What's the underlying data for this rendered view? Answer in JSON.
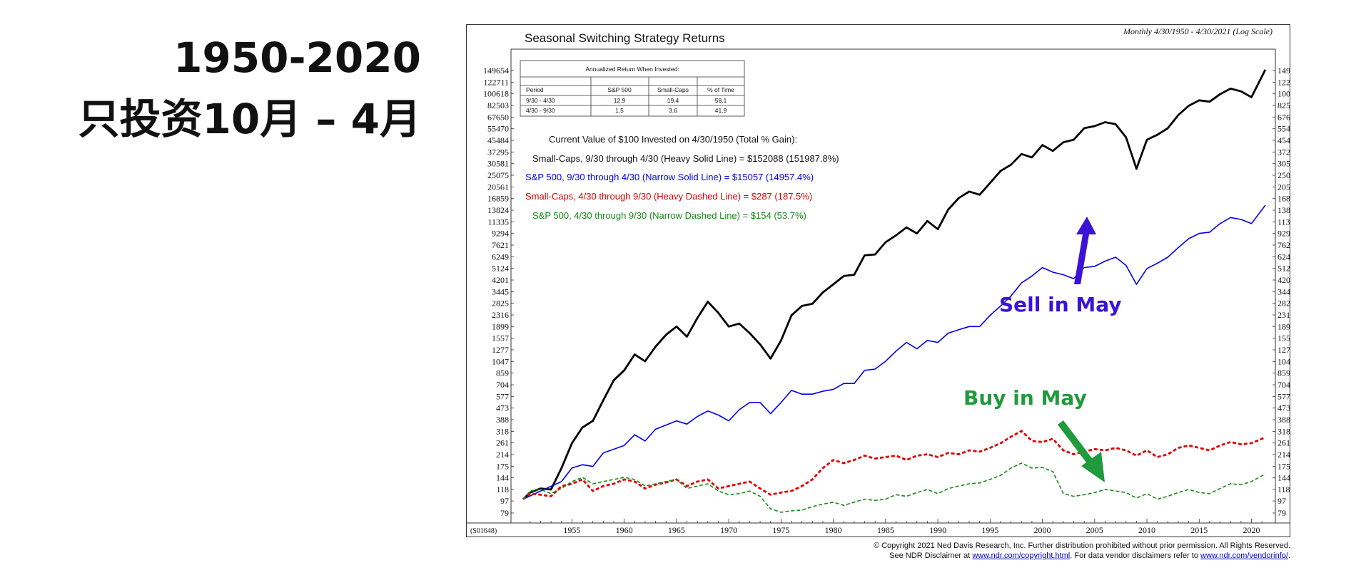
{
  "side_title": {
    "line1": "1950-2020",
    "line2": "只投资10月 – 4月"
  },
  "chart_data": {
    "type": "line",
    "title": "Seasonal Switching Strategy Returns",
    "subtitle": "Monthly 4/30/1950 - 4/30/2021 (Log Scale)",
    "code": "(S01648)",
    "y_scale": "log",
    "ylim": [
      79,
      149654
    ],
    "xlim": [
      1950.33,
      2021.33
    ],
    "y_ticks": [
      149654,
      122711,
      100618,
      82503,
      67650,
      55470,
      45484,
      37295,
      30581,
      25075,
      20561,
      16859,
      13824,
      11335,
      9294,
      7621,
      6249,
      5124,
      4201,
      3445,
      2825,
      2316,
      1899,
      1557,
      1277,
      1047,
      859,
      704,
      577,
      473,
      388,
      318,
      261,
      214,
      175,
      144,
      118,
      97,
      79
    ],
    "x_ticks": [
      1955,
      1960,
      1965,
      1970,
      1975,
      1980,
      1985,
      1990,
      1995,
      2000,
      2005,
      2010,
      2015,
      2020
    ],
    "table": {
      "title": "Annualized Return When Invested:",
      "headers": [
        "Period",
        "S&P 500",
        "Small-Caps",
        "% of Time"
      ],
      "rows": [
        [
          "9/30 - 4/30",
          "12.9",
          "19.4",
          "58.1"
        ],
        [
          "4/30 - 9/30",
          "1.5",
          "3.6",
          "41.9"
        ]
      ]
    },
    "legend_heading": "Current Value of $100 Invested on 4/30/1950 (Total % Gain):",
    "series": [
      {
        "name": "Small-Caps, 9/30 through 4/30 (Heavy Solid Line) = $152088 (151987.8%)",
        "color": "#000000",
        "style": "heavy-solid",
        "points": [
          [
            1950.33,
            100
          ],
          [
            1951,
            112
          ],
          [
            1952,
            120
          ],
          [
            1953,
            118
          ],
          [
            1954,
            170
          ],
          [
            1955,
            260
          ],
          [
            1956,
            340
          ],
          [
            1957,
            380
          ],
          [
            1958,
            540
          ],
          [
            1959,
            760
          ],
          [
            1960,
            900
          ],
          [
            1961,
            1180
          ],
          [
            1962,
            1050
          ],
          [
            1963,
            1350
          ],
          [
            1964,
            1650
          ],
          [
            1965,
            1900
          ],
          [
            1966,
            1600
          ],
          [
            1967,
            2200
          ],
          [
            1968,
            2900
          ],
          [
            1969,
            2400
          ],
          [
            1970,
            1900
          ],
          [
            1971,
            2000
          ],
          [
            1972,
            1700
          ],
          [
            1973,
            1400
          ],
          [
            1974,
            1100
          ],
          [
            1975,
            1500
          ],
          [
            1976,
            2300
          ],
          [
            1977,
            2700
          ],
          [
            1978,
            2800
          ],
          [
            1979,
            3400
          ],
          [
            1980,
            3900
          ],
          [
            1981,
            4500
          ],
          [
            1982,
            4600
          ],
          [
            1983,
            6400
          ],
          [
            1984,
            6500
          ],
          [
            1985,
            8000
          ],
          [
            1986,
            9000
          ],
          [
            1987,
            10300
          ],
          [
            1988,
            9300
          ],
          [
            1989,
            11500
          ],
          [
            1990,
            10000
          ],
          [
            1991,
            14000
          ],
          [
            1992,
            17000
          ],
          [
            1993,
            19000
          ],
          [
            1994,
            18000
          ],
          [
            1995,
            22000
          ],
          [
            1996,
            27000
          ],
          [
            1997,
            30000
          ],
          [
            1998,
            36000
          ],
          [
            1999,
            34000
          ],
          [
            2000,
            42000
          ],
          [
            2001,
            38000
          ],
          [
            2002,
            44000
          ],
          [
            2003,
            46000
          ],
          [
            2004,
            56000
          ],
          [
            2005,
            58000
          ],
          [
            2006,
            62000
          ],
          [
            2007,
            60000
          ],
          [
            2008,
            48000
          ],
          [
            2009,
            28000
          ],
          [
            2010,
            46000
          ],
          [
            2011,
            50000
          ],
          [
            2012,
            56000
          ],
          [
            2013,
            70000
          ],
          [
            2014,
            82000
          ],
          [
            2015,
            90000
          ],
          [
            2016,
            88000
          ],
          [
            2017,
            100000
          ],
          [
            2018,
            110000
          ],
          [
            2019,
            105000
          ],
          [
            2020,
            95000
          ],
          [
            2021.33,
            152088
          ]
        ]
      },
      {
        "name": "S&P 500, 9/30 through 4/30 (Narrow Solid Line) = $15057 (14957.4%)",
        "color": "#0000ee",
        "style": "narrow-solid",
        "points": [
          [
            1950.33,
            100
          ],
          [
            1952,
            115
          ],
          [
            1954,
            135
          ],
          [
            1955,
            170
          ],
          [
            1956,
            180
          ],
          [
            1957,
            175
          ],
          [
            1958,
            220
          ],
          [
            1960,
            250
          ],
          [
            1961,
            300
          ],
          [
            1962,
            270
          ],
          [
            1963,
            330
          ],
          [
            1965,
            380
          ],
          [
            1966,
            360
          ],
          [
            1967,
            410
          ],
          [
            1968,
            450
          ],
          [
            1969,
            420
          ],
          [
            1970,
            380
          ],
          [
            1971,
            460
          ],
          [
            1972,
            520
          ],
          [
            1973,
            520
          ],
          [
            1974,
            430
          ],
          [
            1975,
            520
          ],
          [
            1976,
            640
          ],
          [
            1977,
            600
          ],
          [
            1978,
            600
          ],
          [
            1979,
            630
          ],
          [
            1980,
            650
          ],
          [
            1981,
            720
          ],
          [
            1982,
            720
          ],
          [
            1983,
            900
          ],
          [
            1984,
            920
          ],
          [
            1985,
            1050
          ],
          [
            1986,
            1250
          ],
          [
            1987,
            1450
          ],
          [
            1988,
            1300
          ],
          [
            1989,
            1500
          ],
          [
            1990,
            1450
          ],
          [
            1991,
            1700
          ],
          [
            1992,
            1800
          ],
          [
            1993,
            1900
          ],
          [
            1994,
            1900
          ],
          [
            1995,
            2300
          ],
          [
            1996,
            2700
          ],
          [
            1997,
            3200
          ],
          [
            1998,
            4000
          ],
          [
            1999,
            4500
          ],
          [
            2000,
            5200
          ],
          [
            2001,
            4800
          ],
          [
            2002,
            4600
          ],
          [
            2003,
            4300
          ],
          [
            2004,
            5200
          ],
          [
            2005,
            5300
          ],
          [
            2006,
            5800
          ],
          [
            2007,
            6200
          ],
          [
            2008,
            5400
          ],
          [
            2009,
            3900
          ],
          [
            2010,
            5100
          ],
          [
            2011,
            5600
          ],
          [
            2012,
            6200
          ],
          [
            2013,
            7300
          ],
          [
            2014,
            8500
          ],
          [
            2015,
            9300
          ],
          [
            2016,
            9500
          ],
          [
            2017,
            11000
          ],
          [
            2018,
            12200
          ],
          [
            2019,
            11800
          ],
          [
            2020,
            11000
          ],
          [
            2021.33,
            15057
          ]
        ]
      },
      {
        "name": "Small-Caps, 4/30 through 9/30 (Heavy Dashed Line) = $287 (187.5%)",
        "color": "#e00000",
        "style": "heavy-dashed",
        "points": [
          [
            1950.33,
            100
          ],
          [
            1951,
            110
          ],
          [
            1952,
            108
          ],
          [
            1953,
            105
          ],
          [
            1954,
            125
          ],
          [
            1955,
            130
          ],
          [
            1956,
            140
          ],
          [
            1957,
            115
          ],
          [
            1958,
            125
          ],
          [
            1959,
            130
          ],
          [
            1960,
            140
          ],
          [
            1961,
            135
          ],
          [
            1962,
            120
          ],
          [
            1963,
            128
          ],
          [
            1964,
            133
          ],
          [
            1965,
            140
          ],
          [
            1966,
            125
          ],
          [
            1967,
            135
          ],
          [
            1968,
            140
          ],
          [
            1969,
            120
          ],
          [
            1970,
            125
          ],
          [
            1971,
            130
          ],
          [
            1972,
            135
          ],
          [
            1973,
            120
          ],
          [
            1974,
            108
          ],
          [
            1975,
            112
          ],
          [
            1976,
            115
          ],
          [
            1977,
            125
          ],
          [
            1978,
            140
          ],
          [
            1979,
            170
          ],
          [
            1980,
            195
          ],
          [
            1981,
            185
          ],
          [
            1982,
            195
          ],
          [
            1983,
            210
          ],
          [
            1984,
            200
          ],
          [
            1985,
            205
          ],
          [
            1986,
            210
          ],
          [
            1987,
            195
          ],
          [
            1988,
            210
          ],
          [
            1989,
            215
          ],
          [
            1990,
            205
          ],
          [
            1991,
            220
          ],
          [
            1992,
            215
          ],
          [
            1993,
            230
          ],
          [
            1994,
            225
          ],
          [
            1995,
            240
          ],
          [
            1996,
            260
          ],
          [
            1997,
            290
          ],
          [
            1998,
            320
          ],
          [
            1999,
            270
          ],
          [
            2000,
            265
          ],
          [
            2001,
            280
          ],
          [
            2002,
            230
          ],
          [
            2003,
            215
          ],
          [
            2004,
            225
          ],
          [
            2005,
            235
          ],
          [
            2006,
            230
          ],
          [
            2007,
            240
          ],
          [
            2008,
            230
          ],
          [
            2009,
            210
          ],
          [
            2010,
            230
          ],
          [
            2011,
            205
          ],
          [
            2012,
            215
          ],
          [
            2013,
            240
          ],
          [
            2014,
            250
          ],
          [
            2015,
            240
          ],
          [
            2016,
            230
          ],
          [
            2017,
            250
          ],
          [
            2018,
            265
          ],
          [
            2019,
            255
          ],
          [
            2020,
            260
          ],
          [
            2021.33,
            287
          ]
        ]
      },
      {
        "name": "S&P 500, 4/30 through 9/30 (Narrow Dashed Line) = $154 (53.7%)",
        "color": "#178a17",
        "style": "narrow-dashed",
        "points": [
          [
            1950.33,
            100
          ],
          [
            1951,
            115
          ],
          [
            1952,
            118
          ],
          [
            1953,
            110
          ],
          [
            1954,
            120
          ],
          [
            1955,
            135
          ],
          [
            1956,
            145
          ],
          [
            1957,
            130
          ],
          [
            1958,
            135
          ],
          [
            1959,
            140
          ],
          [
            1960,
            145
          ],
          [
            1961,
            140
          ],
          [
            1962,
            125
          ],
          [
            1963,
            130
          ],
          [
            1964,
            135
          ],
          [
            1965,
            140
          ],
          [
            1966,
            120
          ],
          [
            1967,
            125
          ],
          [
            1968,
            130
          ],
          [
            1969,
            115
          ],
          [
            1970,
            108
          ],
          [
            1971,
            110
          ],
          [
            1972,
            115
          ],
          [
            1973,
            105
          ],
          [
            1974,
            85
          ],
          [
            1975,
            80
          ],
          [
            1976,
            82
          ],
          [
            1977,
            83
          ],
          [
            1978,
            88
          ],
          [
            1979,
            92
          ],
          [
            1980,
            95
          ],
          [
            1981,
            90
          ],
          [
            1982,
            95
          ],
          [
            1983,
            100
          ],
          [
            1984,
            98
          ],
          [
            1985,
            100
          ],
          [
            1986,
            108
          ],
          [
            1987,
            105
          ],
          [
            1988,
            112
          ],
          [
            1989,
            118
          ],
          [
            1990,
            110
          ],
          [
            1991,
            120
          ],
          [
            1992,
            125
          ],
          [
            1993,
            130
          ],
          [
            1994,
            132
          ],
          [
            1995,
            140
          ],
          [
            1996,
            150
          ],
          [
            1997,
            170
          ],
          [
            1998,
            185
          ],
          [
            1999,
            170
          ],
          [
            2000,
            172
          ],
          [
            2001,
            160
          ],
          [
            2002,
            110
          ],
          [
            2003,
            105
          ],
          [
            2004,
            108
          ],
          [
            2005,
            112
          ],
          [
            2006,
            118
          ],
          [
            2007,
            115
          ],
          [
            2008,
            112
          ],
          [
            2009,
            102
          ],
          [
            2010,
            110
          ],
          [
            2011,
            100
          ],
          [
            2012,
            105
          ],
          [
            2013,
            112
          ],
          [
            2014,
            118
          ],
          [
            2015,
            112
          ],
          [
            2016,
            110
          ],
          [
            2017,
            120
          ],
          [
            2018,
            130
          ],
          [
            2019,
            128
          ],
          [
            2020,
            135
          ],
          [
            2021.33,
            154
          ]
        ]
      }
    ],
    "annotations": [
      {
        "text": "Sell in May",
        "color": "#3b12d6"
      },
      {
        "text": "Buy in May",
        "color": "#1f9a3c"
      }
    ]
  },
  "footer": {
    "line1": "© Copyright 2021 Ned Davis Research, Inc. Further distribution prohibited without prior permission.  All Rights Reserved.",
    "line2_pre": "See NDR Disclaimer at ",
    "link1": "www.ndr.com/copyright.html",
    "line2_mid": ". For data vendor disclaimers refer to ",
    "link2": "www.ndr.com/vendorinfo/",
    "line2_post": "."
  }
}
